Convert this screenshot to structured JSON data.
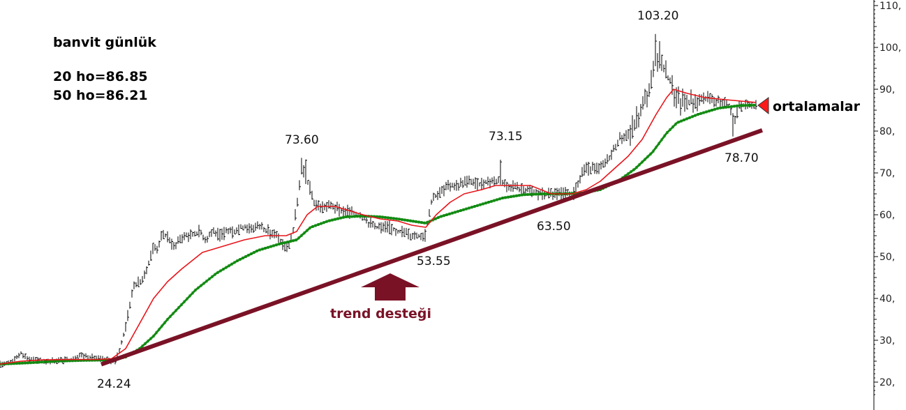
{
  "header": {
    "title": "banvit günlük",
    "ma20": "20 ho=86.85",
    "ma50": "50 ho=86.21"
  },
  "chart_data": {
    "type": "line",
    "title": "banvit günlük",
    "xlabel": "",
    "ylabel": "",
    "ylim": [
      16,
      113
    ],
    "y_ticks": [
      "110,",
      "100,",
      "90,",
      "80,",
      "70,",
      "60,",
      "50,",
      "40,",
      "30,",
      "20,"
    ],
    "y_tick_values": [
      110,
      100,
      90,
      80,
      70,
      60,
      50,
      40,
      30,
      20
    ],
    "grid": false,
    "legend": "top-left",
    "colors": {
      "price": "#000000",
      "ma20": "#e8141a",
      "ma50": "#118a11",
      "trend": "#7a1226"
    },
    "price": [
      [
        0,
        24.3
      ],
      [
        10,
        24.5
      ],
      [
        20,
        25.2
      ],
      [
        30,
        27.0
      ],
      [
        40,
        25.6
      ],
      [
        60,
        25.0
      ],
      [
        80,
        25.2
      ],
      [
        100,
        25.3
      ],
      [
        115,
        26.5
      ],
      [
        130,
        26.0
      ],
      [
        150,
        25.3
      ],
      [
        165,
        25.0
      ],
      [
        172,
        28
      ],
      [
        178,
        32
      ],
      [
        185,
        38
      ],
      [
        192,
        43
      ],
      [
        200,
        44
      ],
      [
        207,
        45
      ],
      [
        212,
        48
      ],
      [
        218,
        52
      ],
      [
        225,
        52
      ],
      [
        232,
        55
      ],
      [
        240,
        55
      ],
      [
        248,
        52
      ],
      [
        256,
        54
      ],
      [
        265,
        55
      ],
      [
        275,
        55
      ],
      [
        285,
        56
      ],
      [
        295,
        54
      ],
      [
        305,
        56
      ],
      [
        315,
        55
      ],
      [
        325,
        56
      ],
      [
        335,
        56
      ],
      [
        345,
        57
      ],
      [
        355,
        57
      ],
      [
        365,
        57
      ],
      [
        375,
        57
      ],
      [
        385,
        56
      ],
      [
        395,
        55
      ],
      [
        405,
        53
      ],
      [
        412,
        52
      ],
      [
        420,
        56
      ],
      [
        428,
        66
      ],
      [
        433,
        71
      ],
      [
        438,
        69
      ],
      [
        443,
        67
      ],
      [
        450,
        63
      ],
      [
        458,
        62
      ],
      [
        468,
        62
      ],
      [
        478,
        62
      ],
      [
        488,
        61
      ],
      [
        498,
        61
      ],
      [
        508,
        60
      ],
      [
        518,
        60
      ],
      [
        528,
        58
      ],
      [
        538,
        57
      ],
      [
        548,
        57
      ],
      [
        558,
        57
      ],
      [
        568,
        56
      ],
      [
        578,
        56
      ],
      [
        588,
        55
      ],
      [
        598,
        55
      ],
      [
        605,
        55
      ],
      [
        610,
        56
      ],
      [
        615,
        61
      ],
      [
        620,
        64
      ],
      [
        628,
        65
      ],
      [
        636,
        66
      ],
      [
        645,
        67
      ],
      [
        655,
        67
      ],
      [
        665,
        68
      ],
      [
        675,
        68
      ],
      [
        685,
        67
      ],
      [
        695,
        68
      ],
      [
        705,
        68
      ],
      [
        715,
        68
      ],
      [
        725,
        67
      ],
      [
        735,
        67
      ],
      [
        745,
        66
      ],
      [
        755,
        66
      ],
      [
        765,
        65
      ],
      [
        775,
        65
      ],
      [
        785,
        65
      ],
      [
        795,
        65
      ],
      [
        805,
        65
      ],
      [
        815,
        65
      ],
      [
        822,
        65
      ],
      [
        828,
        67
      ],
      [
        835,
        71
      ],
      [
        842,
        71
      ],
      [
        850,
        71
      ],
      [
        860,
        71
      ],
      [
        870,
        73
      ],
      [
        878,
        75
      ],
      [
        886,
        78
      ],
      [
        895,
        79
      ],
      [
        904,
        80
      ],
      [
        912,
        83
      ],
      [
        918,
        84
      ],
      [
        925,
        88
      ],
      [
        930,
        90
      ],
      [
        935,
        93
      ],
      [
        940,
        97
      ],
      [
        945,
        96
      ],
      [
        950,
        95
      ],
      [
        956,
        93
      ],
      [
        962,
        91
      ],
      [
        968,
        88
      ],
      [
        975,
        87
      ],
      [
        985,
        87
      ],
      [
        995,
        87
      ],
      [
        1005,
        88
      ],
      [
        1015,
        88
      ],
      [
        1025,
        87
      ],
      [
        1035,
        87
      ],
      [
        1045,
        86
      ],
      [
        1052,
        82
      ],
      [
        1058,
        86
      ],
      [
        1065,
        86
      ],
      [
        1075,
        86
      ],
      [
        1083,
        86
      ]
    ],
    "ma20": [
      [
        0,
        24.3
      ],
      [
        30,
        25.0
      ],
      [
        60,
        25.3
      ],
      [
        100,
        25.4
      ],
      [
        140,
        25.4
      ],
      [
        160,
        25.6
      ],
      [
        180,
        28
      ],
      [
        200,
        34
      ],
      [
        220,
        40
      ],
      [
        240,
        44
      ],
      [
        260,
        47
      ],
      [
        290,
        51
      ],
      [
        320,
        52.5
      ],
      [
        350,
        54
      ],
      [
        380,
        55
      ],
      [
        410,
        55
      ],
      [
        425,
        56
      ],
      [
        440,
        60
      ],
      [
        455,
        62
      ],
      [
        480,
        62
      ],
      [
        500,
        61
      ],
      [
        520,
        60
      ],
      [
        545,
        59
      ],
      [
        570,
        58.5
      ],
      [
        590,
        57.5
      ],
      [
        610,
        57
      ],
      [
        625,
        60
      ],
      [
        645,
        63
      ],
      [
        665,
        65
      ],
      [
        690,
        66
      ],
      [
        710,
        67
      ],
      [
        730,
        67
      ],
      [
        760,
        67
      ],
      [
        790,
        65
      ],
      [
        820,
        65
      ],
      [
        840,
        66
      ],
      [
        860,
        68
      ],
      [
        880,
        71
      ],
      [
        900,
        74
      ],
      [
        920,
        78
      ],
      [
        940,
        84
      ],
      [
        955,
        88
      ],
      [
        965,
        90
      ],
      [
        985,
        89
      ],
      [
        1010,
        88
      ],
      [
        1040,
        87.5
      ],
      [
        1083,
        86.85
      ]
    ],
    "ma50": [
      [
        0,
        24.3
      ],
      [
        40,
        24.6
      ],
      [
        80,
        25.0
      ],
      [
        120,
        25.2
      ],
      [
        160,
        25.3
      ],
      [
        180,
        26
      ],
      [
        200,
        28
      ],
      [
        220,
        31
      ],
      [
        240,
        35
      ],
      [
        260,
        38.5
      ],
      [
        280,
        42
      ],
      [
        310,
        46
      ],
      [
        340,
        49
      ],
      [
        370,
        51.5
      ],
      [
        400,
        53
      ],
      [
        425,
        54
      ],
      [
        445,
        57
      ],
      [
        470,
        58.5
      ],
      [
        495,
        59.5
      ],
      [
        520,
        59.7
      ],
      [
        545,
        59.5
      ],
      [
        570,
        59
      ],
      [
        590,
        58.5
      ],
      [
        610,
        58
      ],
      [
        630,
        59.5
      ],
      [
        660,
        61
      ],
      [
        690,
        62.5
      ],
      [
        720,
        64
      ],
      [
        750,
        64.8
      ],
      [
        780,
        65
      ],
      [
        810,
        65
      ],
      [
        835,
        65.2
      ],
      [
        860,
        66
      ],
      [
        885,
        68
      ],
      [
        910,
        71
      ],
      [
        935,
        75
      ],
      [
        955,
        79.5
      ],
      [
        970,
        82
      ],
      [
        1000,
        84
      ],
      [
        1030,
        85.5
      ],
      [
        1060,
        86.1
      ],
      [
        1083,
        86.21
      ]
    ],
    "trend_line": {
      "from": [
        145,
        24.24
      ],
      "to": [
        1092,
        80.2
      ]
    },
    "annotations": [
      {
        "text": "103.20",
        "value": 103.2
      },
      {
        "text": "73.60",
        "value": 73.6
      },
      {
        "text": "73.15",
        "value": 73.15
      },
      {
        "text": "78.70",
        "value": 78.7
      },
      {
        "text": "63.50",
        "value": 63.5
      },
      {
        "text": "53.55",
        "value": 53.55
      },
      {
        "text": "24.24",
        "value": 24.24
      }
    ],
    "trend_label": "trend desteği",
    "ma_label": "ortalamalar"
  }
}
